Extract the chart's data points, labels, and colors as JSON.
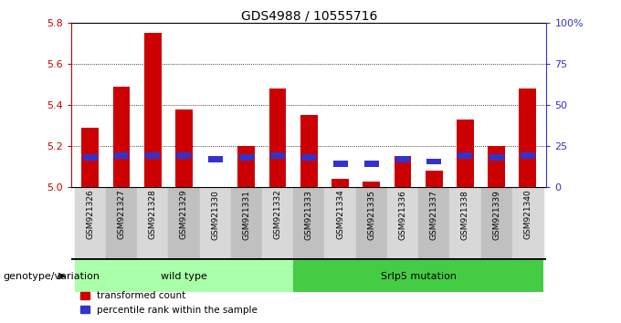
{
  "title": "GDS4988 / 10555716",
  "samples": [
    "GSM921326",
    "GSM921327",
    "GSM921328",
    "GSM921329",
    "GSM921330",
    "GSM921331",
    "GSM921332",
    "GSM921333",
    "GSM921334",
    "GSM921335",
    "GSM921336",
    "GSM921337",
    "GSM921338",
    "GSM921339",
    "GSM921340"
  ],
  "red_values": [
    5.29,
    5.49,
    5.75,
    5.38,
    5.0,
    5.2,
    5.48,
    5.35,
    5.04,
    5.03,
    5.15,
    5.08,
    5.33,
    5.2,
    5.48
  ],
  "blue_bottom": [
    5.13,
    5.14,
    5.14,
    5.14,
    5.12,
    5.13,
    5.14,
    5.13,
    5.1,
    5.1,
    5.12,
    5.11,
    5.14,
    5.13,
    5.14
  ],
  "blue_height": [
    0.03,
    0.03,
    0.03,
    0.03,
    0.03,
    0.03,
    0.03,
    0.03,
    0.03,
    0.03,
    0.03,
    0.03,
    0.03,
    0.03,
    0.03
  ],
  "red_color": "#cc0000",
  "blue_color": "#3333cc",
  "ylim_left": [
    5.0,
    5.8
  ],
  "ylim_right": [
    0,
    100
  ],
  "yticks_left": [
    5.0,
    5.2,
    5.4,
    5.6,
    5.8
  ],
  "yticks_right": [
    0,
    25,
    50,
    75,
    100
  ],
  "ytick_labels_right": [
    "0",
    "25",
    "50",
    "75",
    "100%"
  ],
  "group1_label": "wild type",
  "group2_label": "Srlp5 mutation",
  "group1_count": 7,
  "legend_labels": [
    "transformed count",
    "percentile rank within the sample"
  ],
  "bar_width": 0.55,
  "group1_color": "#aaffaa",
  "group2_color": "#44cc44",
  "genotype_label": "genotype/variation",
  "tick_bg_even": "#d8d8d8",
  "tick_bg_odd": "#c0c0c0"
}
